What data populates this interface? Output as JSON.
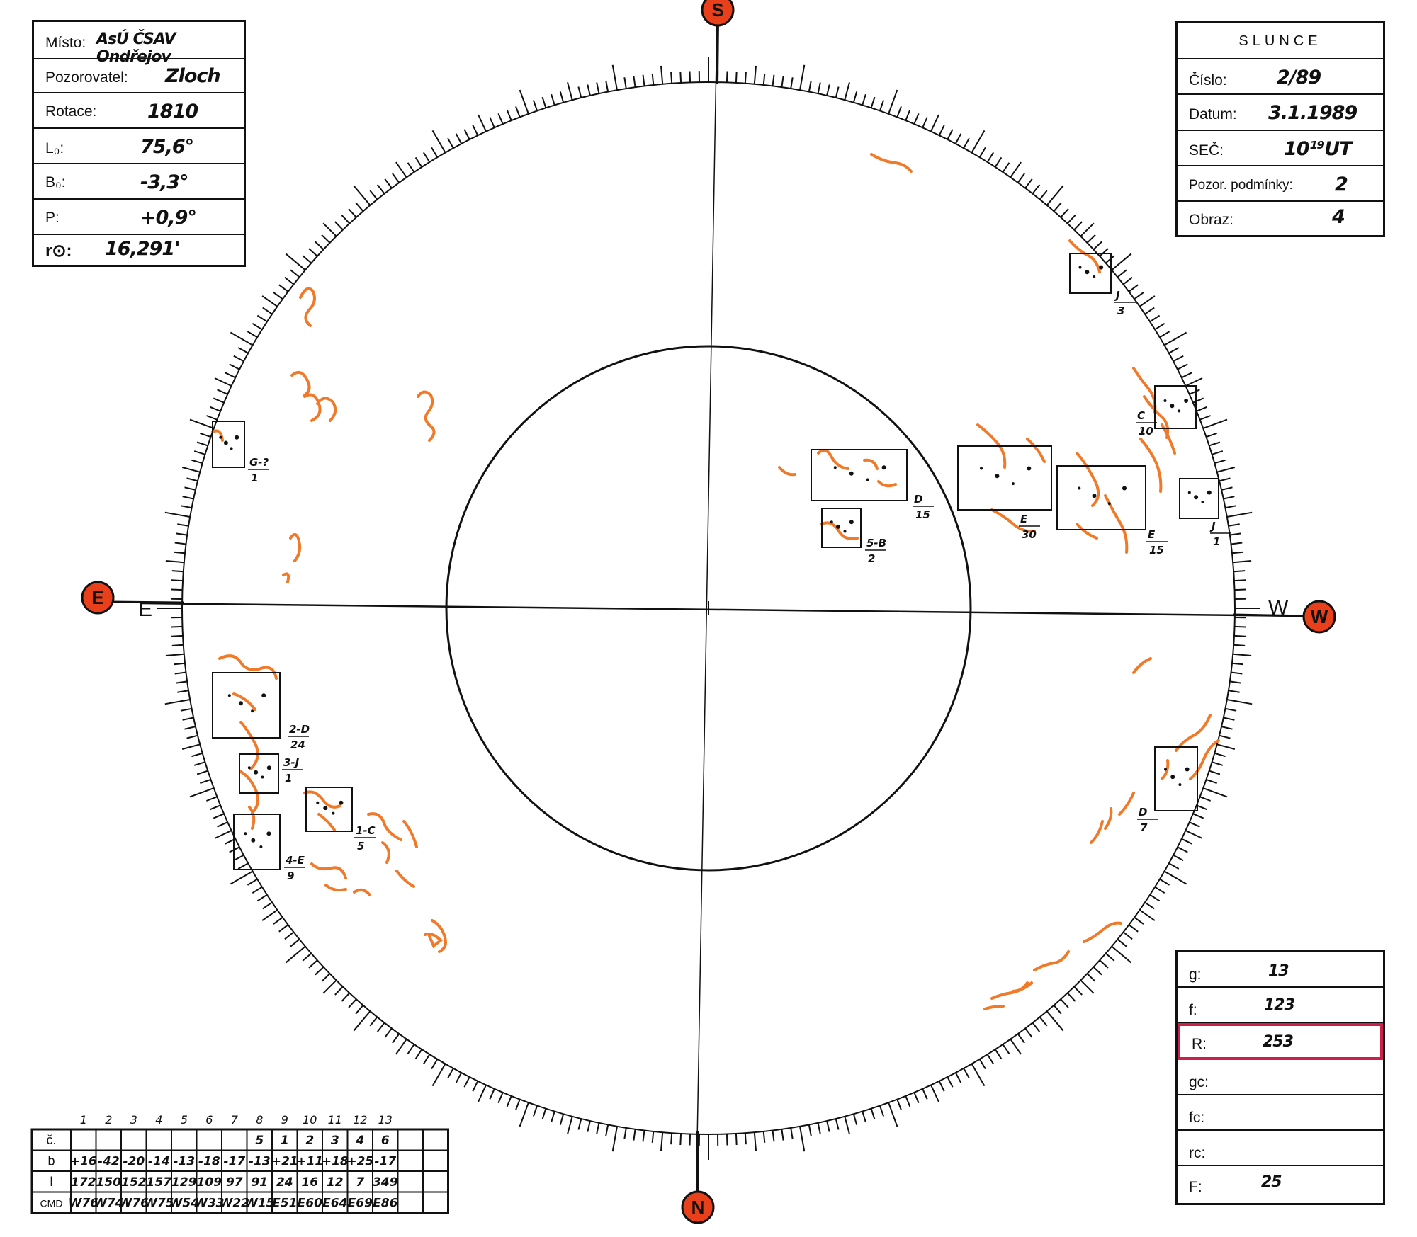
{
  "info_box": {
    "misto_label": "Místo:",
    "misto_value": "AsÚ ČSAV Ondřejov",
    "pozorovatel_label": "Pozorovatel:",
    "pozorovatel_value": "Zloch",
    "rotace_label": "Rotace:",
    "rotace_value": "1810",
    "l0_label": "L₀:",
    "l0_value": "75,6°",
    "b0_label": "B₀:",
    "b0_value": "-3,3°",
    "p_label": "P:",
    "p_value": "+0,9°",
    "r0_label": "r⊙:",
    "r0_value": "16,291'"
  },
  "slunce_box": {
    "title": "SLUNCE",
    "cislo_label": "Číslo:",
    "cislo_value": "2/89",
    "datum_label": "Datum:",
    "datum_value": "3.1.1989",
    "sec_label": "SEČ:",
    "sec_value": "10¹⁹UT",
    "podminky_label": "Pozor. podmínky:",
    "podminky_value": "2",
    "obraz_label": "Obraz:",
    "obraz_value": "4"
  },
  "stats_box": {
    "g_label": "g:",
    "g_value": "13",
    "f_label": "f:",
    "f_value": "123",
    "r_label": "R:",
    "r_value": "253",
    "gc_label": "gc:",
    "gc_value": "",
    "fc_label": "fc:",
    "fc_value": "",
    "rc_label": "rc:",
    "rc_value": "",
    "F_label": "F:",
    "F_value": "25"
  },
  "compass": {
    "top": "S",
    "bottom": "N",
    "left": "E",
    "right": "W",
    "left_line": "E",
    "right_line": "W"
  },
  "groups": [
    {
      "type": "G-?",
      "count": "1"
    },
    {
      "type": "D",
      "count": "15"
    },
    {
      "type": "5-B",
      "count": "2"
    },
    {
      "type": "E",
      "count": "30"
    },
    {
      "type": "E",
      "count": "15"
    },
    {
      "type": "J",
      "count": "1"
    },
    {
      "type": "J",
      "count": "3"
    },
    {
      "type": "C",
      "count": "10"
    },
    {
      "type": "2-D",
      "count": "24"
    },
    {
      "type": "3-J",
      "count": "1"
    },
    {
      "type": "1-C",
      "count": "5"
    },
    {
      "type": "4-E",
      "count": "9"
    },
    {
      "type": "D",
      "count": "7"
    }
  ],
  "table": {
    "col_numbers": [
      "1",
      "2",
      "3",
      "4",
      "5",
      "6",
      "7",
      "8",
      "9",
      "10",
      "11",
      "12",
      "13"
    ],
    "rows": [
      {
        "label": "č.",
        "cells": [
          "",
          "",
          "",
          "",
          "",
          "",
          "",
          "5",
          "1",
          "2",
          "3",
          "4",
          "6"
        ]
      },
      {
        "label": "b",
        "cells": [
          "+16",
          "-42",
          "-20",
          "-14",
          "-13",
          "-18",
          "-17",
          "-13",
          "+21",
          "+11",
          "+18",
          "+25",
          "-17"
        ]
      },
      {
        "label": "l",
        "cells": [
          "172",
          "150",
          "152",
          "157",
          "129",
          "109",
          "97",
          "91",
          "24",
          "16",
          "12",
          "7",
          "349"
        ]
      },
      {
        "label": "CMD",
        "cells": [
          "W76",
          "W74",
          "W76",
          "W75",
          "W54",
          "W33",
          "W22",
          "W15",
          "E51",
          "E60",
          "E64",
          "E69",
          "E86"
        ]
      }
    ]
  }
}
